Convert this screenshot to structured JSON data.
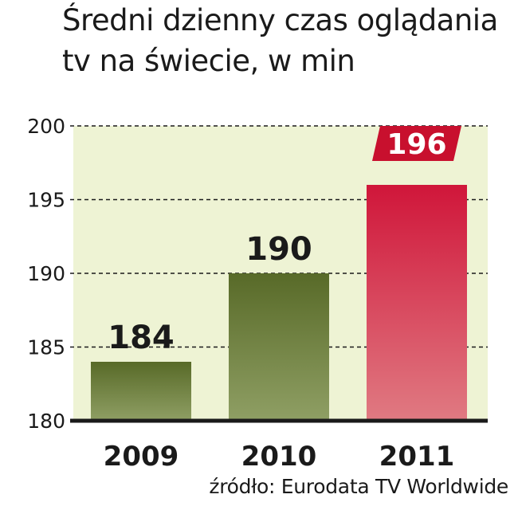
{
  "title_lines": [
    "Średni dzienny czas oglądania",
    "tv na świecie, w min"
  ],
  "source": "źródło: Eurodata TV Worldwide",
  "colors": {
    "plot_bg": "#eef3d4",
    "bar_green_dark": "#586a28",
    "bar_green_light": "#8f9f64",
    "bar_red_top": "#d0163a",
    "bar_red_bottom": "#e07a82",
    "highlight_label_bg": "#c8102e",
    "text": "#1a1a1a"
  },
  "chart_data": {
    "type": "bar",
    "categories": [
      "2009",
      "2010",
      "2011"
    ],
    "values": [
      184,
      190,
      196
    ],
    "data_labels": [
      "184",
      "190",
      "196"
    ],
    "highlight_index": 2,
    "ylim": [
      180,
      200
    ],
    "yticks": [
      180,
      185,
      190,
      195,
      200
    ],
    "ytick_labels": [
      "180",
      "185",
      "190",
      "195",
      "200"
    ],
    "grid": "dashed horizontal"
  }
}
